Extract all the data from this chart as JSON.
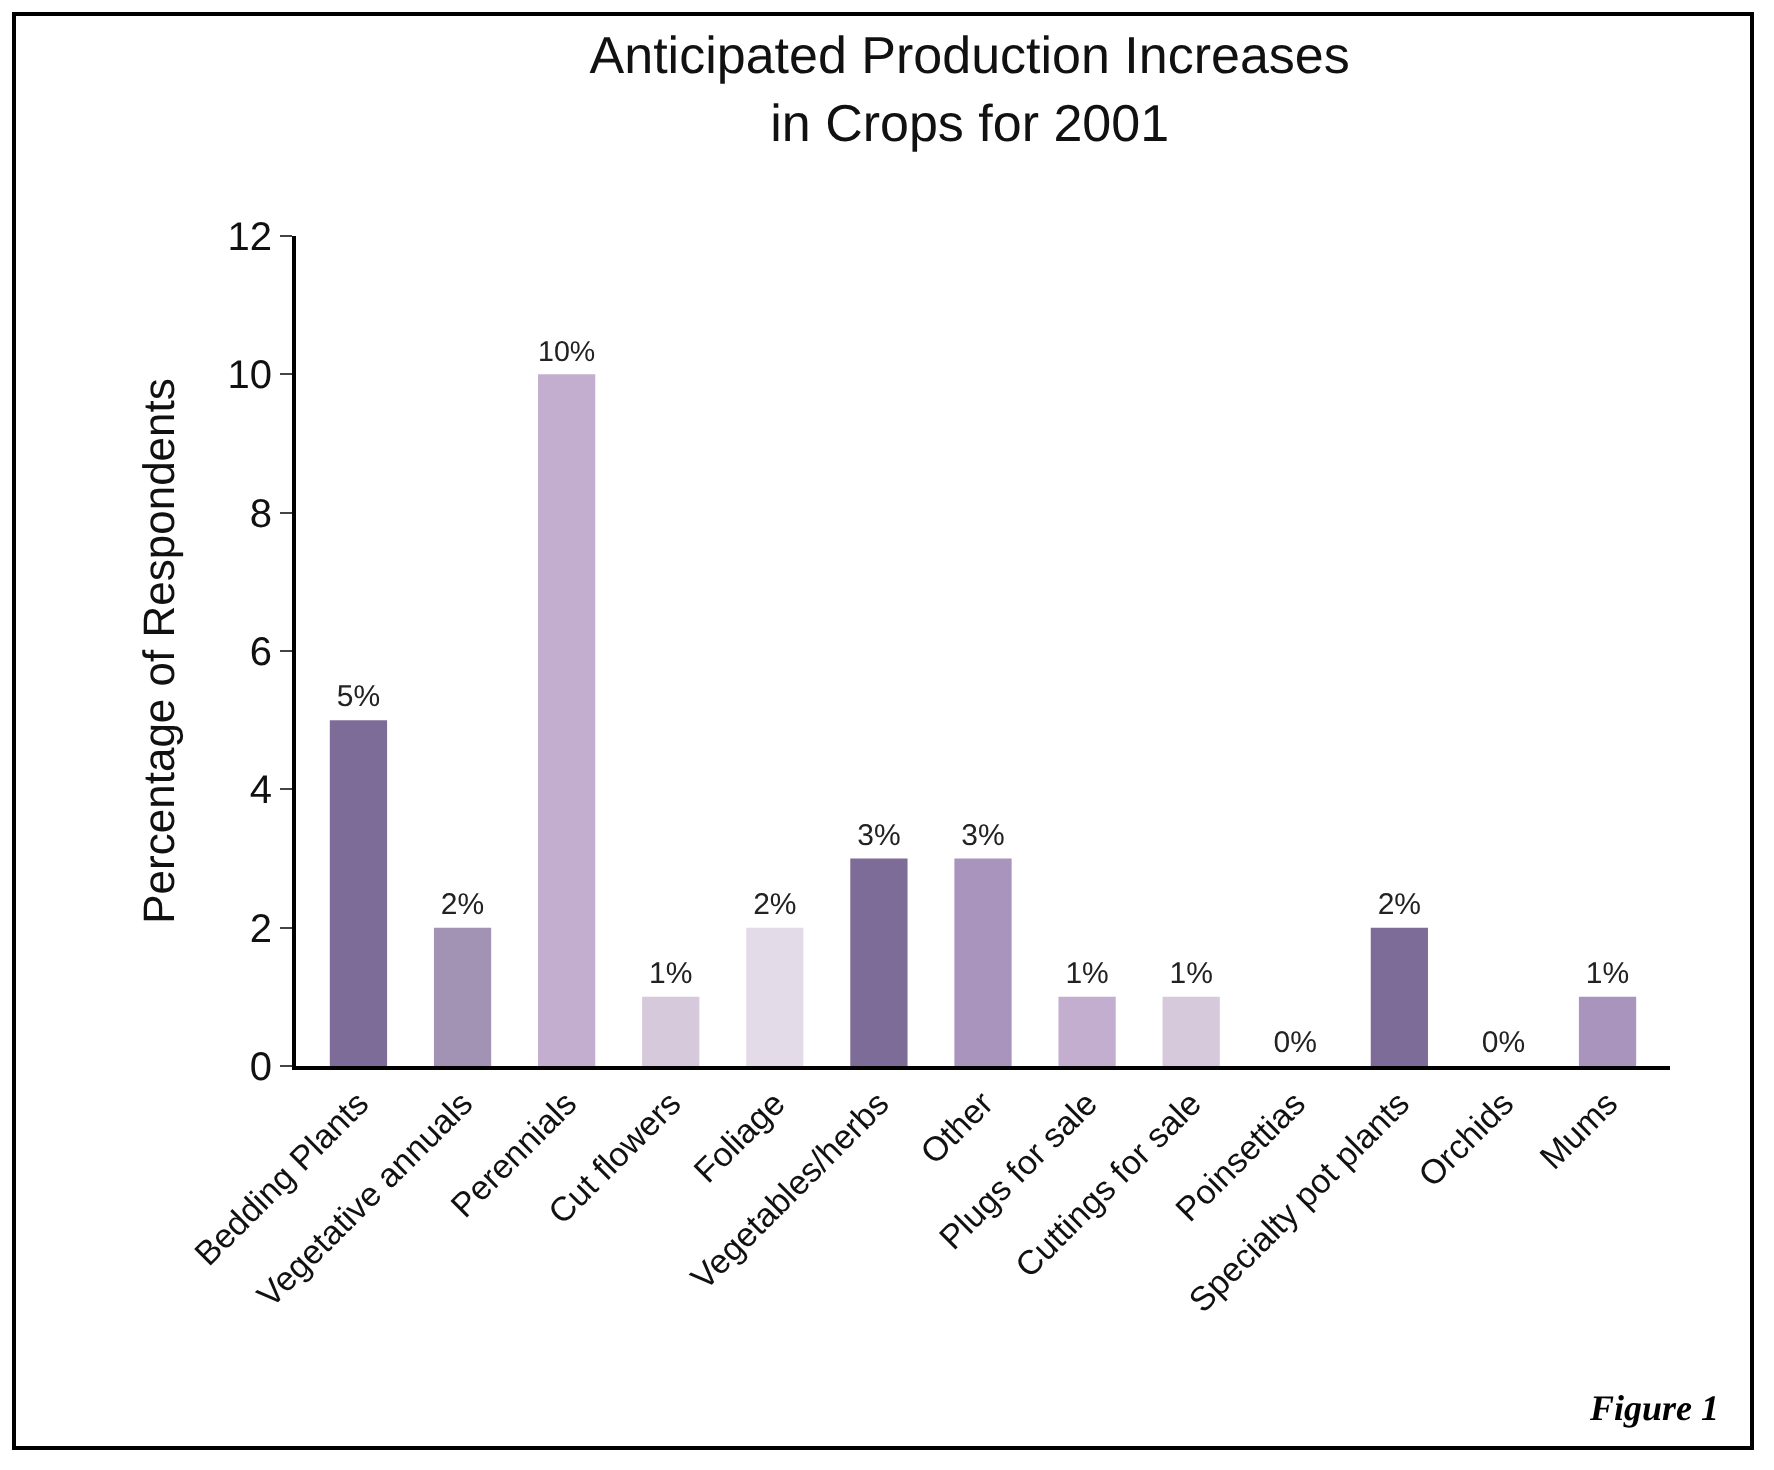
{
  "chart_data": {
    "type": "bar",
    "title": "Anticipated Production Increases\nin Crops for 2001",
    "ylabel": "Percentage of Respondents",
    "categories": [
      "Bedding Plants",
      "Vegetative annuals",
      "Perennials",
      "Cut flowers",
      "Foliage",
      "Vegetables/herbs",
      "Other",
      "Plugs for sale",
      "Cuttings for sale",
      "Poinsettias",
      "Specialty pot plants",
      "Orchids",
      "Mums"
    ],
    "values": [
      5,
      2,
      10,
      1,
      2,
      3,
      3,
      1,
      1,
      0,
      2,
      0,
      1
    ],
    "value_labels": [
      "5%",
      "2%",
      "10%",
      "1%",
      "2%",
      "3%",
      "3%",
      "1%",
      "1%",
      "0%",
      "2%",
      "0%",
      "1%"
    ],
    "colors": [
      "#7e6c98",
      "#a292b4",
      "#c4aed0",
      "#d6c9dc",
      "#e4dbe8",
      "#7e6c98",
      "#a894bc",
      "#c4aed0",
      "#d6c9dc",
      "#e4dbe8",
      "#7e6c98",
      "#c4aed0",
      "#a894bc"
    ],
    "ylim": [
      0,
      12
    ],
    "yticks": [
      0,
      2,
      4,
      6,
      8,
      10,
      12
    ],
    "grid": false,
    "legend": false,
    "annotations": [
      "Figure 1"
    ]
  }
}
